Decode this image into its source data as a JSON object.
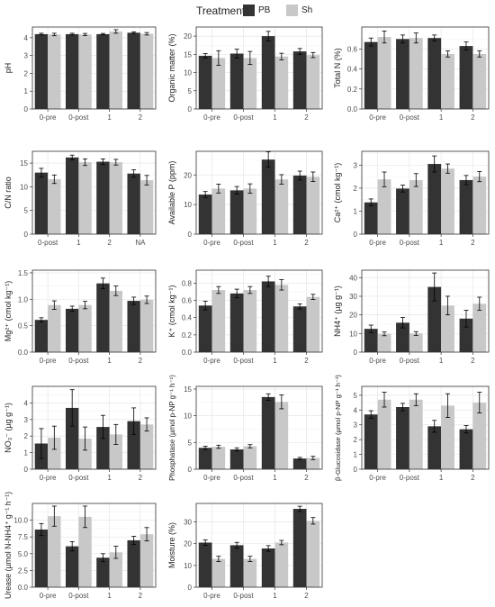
{
  "legend": {
    "title": "Treatment",
    "items": [
      {
        "label": "PB",
        "color": "#333333"
      },
      {
        "label": "Sh",
        "color": "#c8c8c8"
      }
    ]
  },
  "chart_data": [
    {
      "type": "bar",
      "ylabel": "pH",
      "categories": [
        "0-pre",
        "0-post",
        "1",
        "2"
      ],
      "ylim": [
        0,
        4.6
      ],
      "yticks": [
        0,
        1,
        2,
        3,
        4
      ],
      "series": [
        {
          "name": "PB",
          "values": [
            4.2,
            4.2,
            4.2,
            4.28
          ],
          "errors": [
            0.05,
            0.05,
            0.04,
            0.05
          ]
        },
        {
          "name": "Sh",
          "values": [
            4.18,
            4.18,
            4.35,
            4.22
          ],
          "errors": [
            0.07,
            0.06,
            0.1,
            0.07
          ]
        }
      ]
    },
    {
      "type": "bar",
      "ylabel": "Organic matter (%)",
      "categories": [
        "0-pre",
        "0-post",
        "1",
        "2"
      ],
      "ylim": [
        0,
        22.5
      ],
      "yticks": [
        0,
        5,
        10,
        15,
        20
      ],
      "series": [
        {
          "name": "PB",
          "values": [
            14.6,
            15.2,
            20.0,
            15.8
          ],
          "errors": [
            0.6,
            1.2,
            1.3,
            0.8
          ]
        },
        {
          "name": "Sh",
          "values": [
            14.0,
            14.0,
            14.4,
            14.8
          ],
          "errors": [
            2.0,
            1.8,
            0.9,
            0.7
          ]
        }
      ]
    },
    {
      "type": "bar",
      "ylabel": "Total N (%)",
      "categories": [
        "0-pre",
        "0-post",
        "1",
        "2"
      ],
      "ylim": [
        0,
        0.82
      ],
      "yticks": [
        0.0,
        0.2,
        0.4,
        0.6
      ],
      "series": [
        {
          "name": "PB",
          "values": [
            0.67,
            0.7,
            0.71,
            0.63
          ],
          "errors": [
            0.04,
            0.04,
            0.03,
            0.04
          ]
        },
        {
          "name": "Sh",
          "values": [
            0.72,
            0.71,
            0.55,
            0.55
          ],
          "errors": [
            0.06,
            0.05,
            0.03,
            0.03
          ]
        }
      ]
    },
    {
      "type": "bar",
      "ylabel": "C/N ratio",
      "categories": [
        "0-post",
        "1",
        "2",
        "NA"
      ],
      "ylim": [
        0,
        17.5
      ],
      "yticks": [
        0,
        5,
        10,
        15
      ],
      "series": [
        {
          "name": "PB",
          "values": [
            13.0,
            16.2,
            15.3,
            12.8
          ],
          "errors": [
            0.9,
            0.5,
            0.6,
            0.8
          ]
        },
        {
          "name": "Sh",
          "values": [
            11.6,
            15.2,
            15.2,
            11.4
          ],
          "errors": [
            0.9,
            0.7,
            0.6,
            1.0
          ]
        }
      ]
    },
    {
      "type": "bar",
      "ylabel": "Available P (ppm)",
      "categories": [
        "0-pre",
        "0-post",
        "1",
        "2"
      ],
      "ylim": [
        0,
        28
      ],
      "yticks": [
        0,
        10,
        20
      ],
      "series": [
        {
          "name": "PB",
          "values": [
            13.4,
            14.8,
            25.2,
            19.8
          ],
          "errors": [
            1.0,
            1.3,
            2.6,
            1.5
          ]
        },
        {
          "name": "Sh",
          "values": [
            15.4,
            15.4,
            18.5,
            19.4
          ],
          "errors": [
            1.5,
            1.6,
            1.6,
            1.6
          ]
        }
      ]
    },
    {
      "type": "bar",
      "ylabel": "Ca²⁺ (cmol kg⁻¹)",
      "categories": [
        "0-pre",
        "0-post",
        "1",
        "2"
      ],
      "ylim": [
        0,
        3.6
      ],
      "yticks": [
        0,
        1,
        2,
        3
      ],
      "series": [
        {
          "name": "PB",
          "values": [
            1.38,
            1.98,
            3.05,
            2.35
          ],
          "errors": [
            0.15,
            0.15,
            0.35,
            0.2
          ]
        },
        {
          "name": "Sh",
          "values": [
            2.38,
            2.35,
            2.85,
            2.5
          ],
          "errors": [
            0.32,
            0.28,
            0.2,
            0.22
          ]
        }
      ]
    },
    {
      "type": "bar",
      "ylabel": "Mg²⁺ (cmol kg⁻¹)",
      "categories": [
        "0-pre",
        "0-post",
        "1",
        "2"
      ],
      "ylim": [
        0,
        1.55
      ],
      "yticks": [
        0.0,
        0.5,
        1.0,
        1.5
      ],
      "series": [
        {
          "name": "PB",
          "values": [
            0.61,
            0.82,
            1.3,
            0.97
          ],
          "errors": [
            0.04,
            0.05,
            0.1,
            0.07
          ]
        },
        {
          "name": "Sh",
          "values": [
            0.89,
            0.89,
            1.16,
            0.99
          ],
          "errors": [
            0.08,
            0.07,
            0.09,
            0.07
          ]
        }
      ]
    },
    {
      "type": "bar",
      "ylabel": "K⁺ (cmol kg⁻¹)",
      "categories": [
        "0-pre",
        "0-post",
        "1",
        "2"
      ],
      "ylim": [
        0,
        0.95
      ],
      "yticks": [
        0.0,
        0.2,
        0.4,
        0.6,
        0.8
      ],
      "series": [
        {
          "name": "PB",
          "values": [
            0.54,
            0.68,
            0.82,
            0.53
          ],
          "errors": [
            0.05,
            0.05,
            0.06,
            0.03
          ]
        },
        {
          "name": "Sh",
          "values": [
            0.72,
            0.72,
            0.78,
            0.64
          ],
          "errors": [
            0.04,
            0.04,
            0.06,
            0.03
          ]
        }
      ]
    },
    {
      "type": "bar",
      "ylabel": "NH4⁺ (µg g⁻¹)",
      "categories": [
        "0-pre",
        "0-post",
        "1",
        "2"
      ],
      "ylim": [
        0,
        44
      ],
      "yticks": [
        0,
        10,
        20,
        30,
        40
      ],
      "series": [
        {
          "name": "PB",
          "values": [
            12.5,
            15.8,
            35.0,
            18.0
          ],
          "errors": [
            2.0,
            2.8,
            7.5,
            4.5
          ]
        },
        {
          "name": "Sh",
          "values": [
            9.8,
            10.0,
            25.0,
            26.0
          ],
          "errors": [
            1.0,
            1.0,
            5.0,
            3.5
          ]
        }
      ]
    },
    {
      "type": "bar",
      "ylabel": "NO₃⁻ (µg g⁻¹)",
      "categories": [
        "0-pre",
        "0-post",
        "1",
        "2"
      ],
      "ylim": [
        0,
        5.0
      ],
      "yticks": [
        0,
        1,
        2,
        3,
        4
      ],
      "series": [
        {
          "name": "PB",
          "values": [
            1.55,
            3.7,
            2.55,
            2.9
          ],
          "errors": [
            0.9,
            1.1,
            0.7,
            0.8
          ]
        },
        {
          "name": "Sh",
          "values": [
            1.9,
            1.85,
            2.1,
            2.7
          ],
          "errors": [
            0.7,
            0.7,
            0.6,
            0.4
          ]
        }
      ]
    },
    {
      "type": "bar",
      "ylabel": "Phosphatase (µmol p-NP g⁻¹ h⁻¹)",
      "categories": [
        "0-pre",
        "0-post",
        "1",
        "2"
      ],
      "ylim": [
        0,
        15.5
      ],
      "yticks": [
        0,
        5,
        10,
        15
      ],
      "series": [
        {
          "name": "PB",
          "values": [
            4.0,
            3.7,
            13.5,
            2.0
          ],
          "errors": [
            0.3,
            0.3,
            0.6,
            0.2
          ]
        },
        {
          "name": "Sh",
          "values": [
            4.2,
            4.3,
            12.6,
            2.1
          ],
          "errors": [
            0.3,
            0.3,
            1.3,
            0.3
          ]
        }
      ]
    },
    {
      "type": "bar",
      "ylabel": "β-Glucosidase (µmol p-NP g⁻¹ h⁻¹)",
      "categories": [
        "0-pre",
        "0-post",
        "1",
        "2"
      ],
      "ylim": [
        0,
        5.6
      ],
      "yticks": [
        0,
        1,
        2,
        3,
        4,
        5
      ],
      "series": [
        {
          "name": "PB",
          "values": [
            3.7,
            4.2,
            2.9,
            2.7
          ],
          "errors": [
            0.25,
            0.25,
            0.4,
            0.25
          ]
        },
        {
          "name": "Sh",
          "values": [
            4.7,
            4.7,
            4.3,
            4.5
          ],
          "errors": [
            0.5,
            0.4,
            0.8,
            0.7
          ]
        }
      ]
    },
    {
      "type": "bar",
      "ylabel": "Urease (µmol N-NH4⁺ g⁻¹ h⁻¹)",
      "categories": [
        "0-pre",
        "0-post",
        "1",
        "2"
      ],
      "ylim": [
        0,
        12.5
      ],
      "yticks": [
        0.0,
        2.5,
        5.0,
        7.5,
        10.0
      ],
      "series": [
        {
          "name": "PB",
          "values": [
            8.6,
            6.1,
            4.4,
            7.0
          ],
          "errors": [
            0.9,
            0.7,
            0.6,
            0.6
          ]
        },
        {
          "name": "Sh",
          "values": [
            10.6,
            10.5,
            5.2,
            7.9
          ],
          "errors": [
            1.5,
            1.6,
            0.9,
            1.0
          ]
        }
      ]
    },
    {
      "type": "bar",
      "ylabel": "Moisture (%)",
      "categories": [
        "0-pre",
        "0-post",
        "1",
        "2"
      ],
      "ylim": [
        0,
        38.5
      ],
      "yticks": [
        0,
        10,
        20,
        30
      ],
      "series": [
        {
          "name": "PB",
          "values": [
            20.5,
            19.3,
            17.8,
            36.0
          ],
          "errors": [
            1.2,
            1.3,
            1.3,
            1.2
          ]
        },
        {
          "name": "Sh",
          "values": [
            13.0,
            13.0,
            20.5,
            30.5
          ],
          "errors": [
            1.2,
            1.2,
            1.0,
            1.5
          ]
        }
      ]
    }
  ]
}
